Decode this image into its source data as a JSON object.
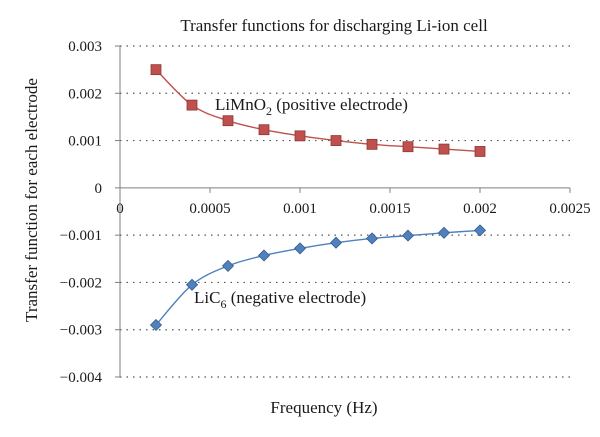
{
  "chart_data": {
    "type": "scatter",
    "title": "Transfer functions for discharging Li-ion cell",
    "xlabel": "Frequency (Hz)",
    "ylabel": "Transfer function for each electrode",
    "xlim": [
      0,
      0.0025
    ],
    "ylim": [
      -0.004,
      0.003
    ],
    "x_ticks": [
      0,
      0.0005,
      0.001,
      0.0015,
      0.002,
      0.0025
    ],
    "x_tick_labels": [
      "0",
      "0.0005",
      "0.001",
      "0.0015",
      "0.002",
      "0.0025"
    ],
    "y_ticks": [
      0.003,
      0.002,
      0.001,
      0,
      -0.001,
      -0.002,
      -0.003,
      -0.004
    ],
    "y_tick_labels": [
      "0.003",
      "0.002",
      "0.001",
      "0",
      "−0.001",
      "−0.002",
      "−0.003",
      "−0.004"
    ],
    "grid": true,
    "series": [
      {
        "name": "LiMnO2 (positive electrode)",
        "label_main": "LiMnO",
        "label_sub": "2",
        "label_rest": " (positive electrode)",
        "marker": "square",
        "color": "#c0504d",
        "line_color": "#c0504d",
        "marker_edge": "#8c3836",
        "x": [
          0.0002,
          0.0004,
          0.0006,
          0.0008,
          0.001,
          0.0012,
          0.0014,
          0.0016,
          0.0018,
          0.002
        ],
        "y": [
          0.0025,
          0.00175,
          0.00142,
          0.00123,
          0.0011,
          0.001,
          0.00092,
          0.00087,
          0.00082,
          0.00077
        ]
      },
      {
        "name": "LiC6 (negative electrode)",
        "label_main": "LiC",
        "label_sub": "6",
        "label_rest": " (negative electrode)",
        "marker": "diamond",
        "color": "#4f81bd",
        "line_color": "#4f81bd",
        "marker_edge": "#385d8a",
        "x": [
          0.0002,
          0.0004,
          0.0006,
          0.0008,
          0.001,
          0.0012,
          0.0014,
          0.0016,
          0.0018,
          0.002
        ],
        "y": [
          -0.0029,
          -0.00205,
          -0.00165,
          -0.00143,
          -0.00128,
          -0.00116,
          -0.00107,
          -0.00101,
          -0.00095,
          -0.0009
        ]
      }
    ]
  }
}
